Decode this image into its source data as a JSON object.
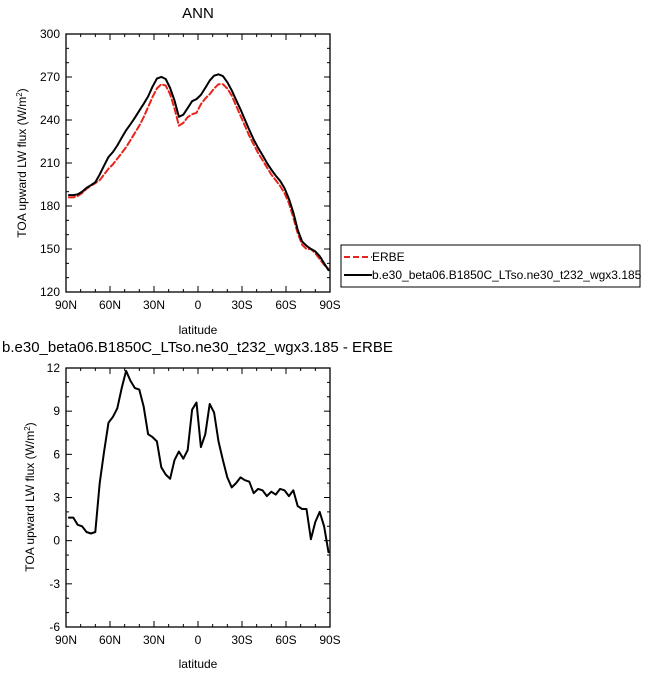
{
  "chart_data": [
    {
      "type": "line",
      "title": "ANN",
      "xlabel": "latitude",
      "ylabel": "TOA upward LW flux (W/m",
      "ylabel_sup": "2",
      "ylabel_close": ")",
      "xlim": [
        90,
        -90
      ],
      "ylim": [
        120,
        300
      ],
      "xticks": [
        90,
        60,
        30,
        0,
        -30,
        -60,
        -90
      ],
      "xtick_labels": [
        "90N",
        "60N",
        "30N",
        "0",
        "30S",
        "60S",
        "90S"
      ],
      "yticks": [
        120,
        150,
        180,
        210,
        240,
        270,
        300
      ],
      "ytick_labels": [
        "120",
        "150",
        "180",
        "210",
        "240",
        "270",
        "300"
      ],
      "legend_placement": "right",
      "x": [
        88,
        85,
        82,
        79,
        76,
        73,
        70,
        67,
        64,
        61,
        58,
        55,
        52,
        49,
        46,
        43,
        40,
        37,
        34,
        31,
        28,
        25,
        22,
        19,
        16,
        13,
        10,
        7,
        4,
        1,
        -2,
        -5,
        -8,
        -11,
        -14,
        -17,
        -20,
        -23,
        -26,
        -29,
        -32,
        -35,
        -38,
        -41,
        -44,
        -47,
        -50,
        -53,
        -56,
        -59,
        -62,
        -65,
        -68,
        -71,
        -74,
        -77,
        -80,
        -83,
        -86,
        -89
      ],
      "series": [
        {
          "name": "ERBE",
          "color": "#e8231a",
          "dash": true,
          "values": [
            186,
            186,
            187,
            189,
            192,
            194,
            196,
            198,
            202,
            206,
            209,
            213,
            217,
            221,
            226,
            231,
            236,
            242,
            249,
            256,
            262,
            265,
            264,
            258,
            248,
            236,
            238,
            242,
            244,
            245,
            251,
            255,
            258,
            262,
            265,
            265,
            262,
            257,
            250,
            243,
            236,
            229,
            223,
            217,
            212,
            207,
            202,
            198,
            194,
            189,
            182,
            172,
            161,
            153,
            150,
            150,
            147,
            143,
            139,
            136
          ]
        },
        {
          "name": "b.e30_beta06.B1850C_LTso.ne30_t232_wgx3.185",
          "color": "#000000",
          "dash": false,
          "values": [
            187.6,
            187.6,
            188.1,
            190.0,
            192.6,
            194.5,
            196.6,
            202.0,
            208.2,
            214.2,
            217.6,
            222.2,
            227.6,
            232.8,
            237.1,
            241.6,
            246.5,
            251.3,
            256.4,
            263.2,
            268.9,
            270.1,
            268.6,
            262.3,
            253.6,
            242.2,
            243.7,
            248.3,
            253.1,
            254.6,
            257.5,
            262.4,
            267.5,
            270.9,
            271.9,
            270.6,
            266.4,
            260.7,
            254.0,
            247.4,
            240.2,
            233.1,
            226.3,
            220.6,
            215.5,
            210.1,
            205.4,
            201.2,
            197.6,
            192.5,
            185.1,
            175.5,
            163.4,
            155.2,
            152.2,
            150.1,
            148.3,
            145.0,
            140.0,
            135.2
          ]
        }
      ]
    },
    {
      "type": "line",
      "title": "b.e30_beta06.B1850C_LTso.ne30_t232_wgx3.185 - ERBE",
      "xlabel": "latitude",
      "ylabel": "TOA upward LW flux (W/m",
      "ylabel_sup": "2",
      "ylabel_close": ")",
      "xlim": [
        90,
        -90
      ],
      "ylim": [
        -6,
        12
      ],
      "xticks": [
        90,
        60,
        30,
        0,
        -30,
        -60,
        -90
      ],
      "xtick_labels": [
        "90N",
        "60N",
        "30N",
        "0",
        "30S",
        "60S",
        "90S"
      ],
      "yticks": [
        -6,
        -3,
        0,
        3,
        6,
        9,
        12
      ],
      "ytick_labels": [
        "-6",
        "-3",
        "0",
        "3",
        "6",
        "9",
        "12"
      ],
      "x": [
        88,
        85,
        82,
        79,
        76,
        73,
        70,
        67,
        64,
        61,
        58,
        55,
        52,
        49,
        46,
        43,
        40,
        37,
        34,
        31,
        28,
        25,
        22,
        19,
        16,
        13,
        10,
        7,
        4,
        1,
        -2,
        -5,
        -8,
        -11,
        -14,
        -17,
        -20,
        -23,
        -26,
        -29,
        -32,
        -35,
        -38,
        -41,
        -44,
        -47,
        -50,
        -53,
        -56,
        -59,
        -62,
        -65,
        -68,
        -71,
        -74,
        -77,
        -80,
        -83,
        -86,
        -89
      ],
      "series": [
        {
          "color": "#000000",
          "values": [
            1.6,
            1.6,
            1.1,
            1.0,
            0.6,
            0.5,
            0.6,
            4.0,
            6.2,
            8.2,
            8.6,
            9.2,
            10.6,
            11.8,
            11.1,
            10.6,
            10.5,
            9.3,
            7.4,
            7.2,
            6.9,
            5.1,
            4.6,
            4.3,
            5.6,
            6.2,
            5.7,
            6.3,
            9.1,
            9.6,
            6.5,
            7.4,
            9.5,
            8.9,
            6.9,
            5.6,
            4.4,
            3.7,
            4.0,
            4.4,
            4.2,
            4.1,
            3.3,
            3.6,
            3.5,
            3.1,
            3.4,
            3.2,
            3.6,
            3.5,
            3.1,
            3.5,
            2.4,
            2.2,
            2.2,
            0.1,
            1.3,
            2.0,
            1.0,
            -0.8
          ]
        }
      ]
    }
  ]
}
